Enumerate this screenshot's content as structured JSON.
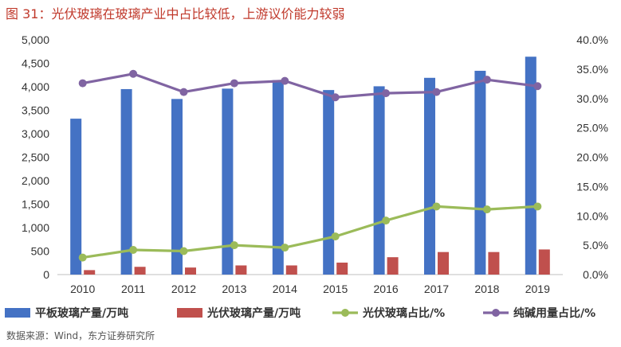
{
  "header": {
    "title": "图 31：光伏玻璃在玻璃产业中占比较低，上游议价能力较弱"
  },
  "footer": {
    "source": "数据来源：Wind，东方证券研究所"
  },
  "chart_data": {
    "type": "bar",
    "title": "",
    "categories": [
      "2010",
      "2011",
      "2012",
      "2013",
      "2014",
      "2015",
      "2016",
      "2017",
      "2018",
      "2019"
    ],
    "y_left": {
      "ylim": [
        0,
        5000
      ],
      "ticks": [
        "0",
        "500",
        "1,000",
        "1,500",
        "2,000",
        "2,500",
        "3,000",
        "3,500",
        "4,000",
        "4,500",
        "5,000"
      ]
    },
    "y_right": {
      "ylim": [
        0,
        0.4
      ],
      "ticks": [
        "0.0%",
        "5.0%",
        "10.0%",
        "15.0%",
        "20.0%",
        "25.0%",
        "30.0%",
        "35.0%",
        "40.0%"
      ]
    },
    "grid": false,
    "legend_position": "bottom",
    "series": [
      {
        "name": "平板玻璃产量/万吨",
        "kind": "bar",
        "axis": "left",
        "color": "#4472C4",
        "values": [
          3320,
          3950,
          3740,
          3960,
          4140,
          3930,
          4010,
          4190,
          4340,
          4640
        ]
      },
      {
        "name": "光伏玻璃产量/万吨",
        "kind": "bar",
        "axis": "left",
        "color": "#C0504D",
        "values": [
          95,
          165,
          150,
          195,
          195,
          255,
          370,
          480,
          480,
          535
        ]
      },
      {
        "name": "光伏玻璃占比/%",
        "kind": "line",
        "axis": "right",
        "color": "#9BBB59",
        "values": [
          0.029,
          0.042,
          0.04,
          0.05,
          0.046,
          0.065,
          0.092,
          0.116,
          0.111,
          0.116
        ]
      },
      {
        "name": "纯碱用量占比/%",
        "kind": "line",
        "axis": "right",
        "color": "#8064A2",
        "values": [
          0.326,
          0.342,
          0.311,
          0.326,
          0.33,
          0.302,
          0.309,
          0.311,
          0.332,
          0.321
        ]
      }
    ]
  }
}
